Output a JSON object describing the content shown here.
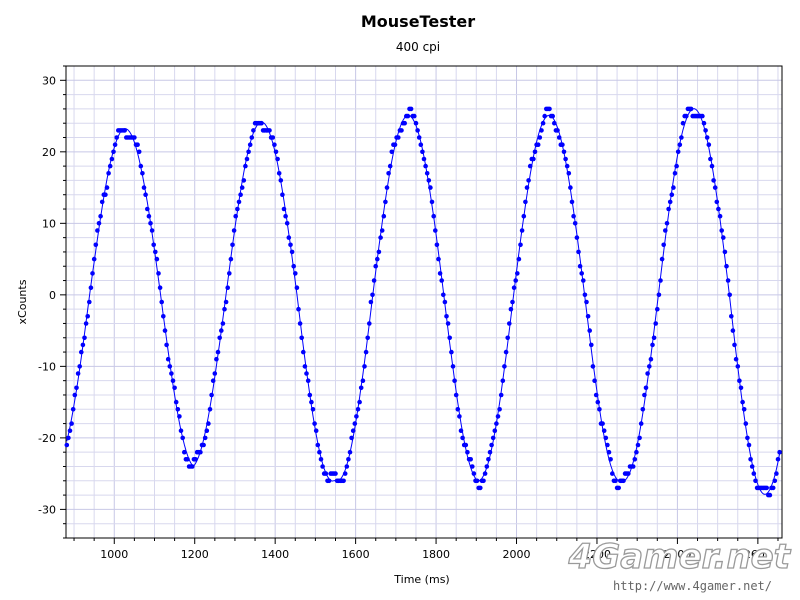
{
  "chart_data": {
    "type": "scatter",
    "title": "MouseTester",
    "subtitle": "400 cpi",
    "xlabel": "Time (ms)",
    "ylabel": "xCounts",
    "xlim": [
      880,
      2660
    ],
    "ylim": [
      -34,
      32
    ],
    "xticks": [
      1000,
      1200,
      1400,
      1600,
      1800,
      2000,
      2200,
      2400,
      2600
    ],
    "yticks": [
      30,
      20,
      10,
      0,
      -10,
      -20,
      -30
    ],
    "grid": true,
    "legend": "none",
    "series": [
      {
        "style": "points+line",
        "color": "#0000ff",
        "model": {
          "period_ms": 353,
          "amplitude": 24.6,
          "peaks_x": [
            1027,
            1366,
            1731,
            2081,
            2441
          ],
          "peaks_y": [
            25,
            26,
            27,
            27,
            28
          ],
          "troughs_y": [
            -26,
            -28,
            -28,
            -28,
            -30
          ],
          "x_start": 882,
          "x_end": 2655
        }
      }
    ]
  },
  "watermark": {
    "logo_text": "4Gamer.net",
    "url": "http://www.4gamer.net/"
  },
  "colors": {
    "series": "#0000ff",
    "grid": "#d8d8ee",
    "axis": "#000000"
  }
}
